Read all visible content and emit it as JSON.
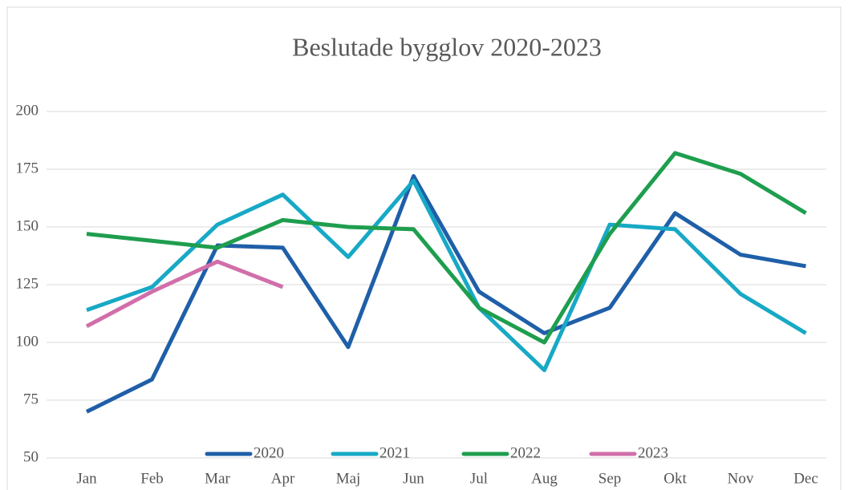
{
  "chart_data": {
    "type": "line",
    "title": "Beslutade bygglov 2020-2023",
    "categories": [
      "Jan",
      "Feb",
      "Mar",
      "Apr",
      "Maj",
      "Jun",
      "Jul",
      "Aug",
      "Sep",
      "Okt",
      "Nov",
      "Dec"
    ],
    "series": [
      {
        "name": "2020",
        "color": "#1f5fa8",
        "values": [
          70,
          84,
          142,
          141,
          98,
          172,
          122,
          104,
          115,
          156,
          138,
          133
        ]
      },
      {
        "name": "2021",
        "color": "#17a9c5",
        "values": [
          114,
          124,
          151,
          164,
          137,
          170,
          115,
          88,
          151,
          149,
          121,
          104
        ]
      },
      {
        "name": "2022",
        "color": "#1e9e4e",
        "values": [
          147,
          144,
          141,
          153,
          150,
          149,
          115,
          100,
          147,
          182,
          173,
          156
        ]
      },
      {
        "name": "2023",
        "color": "#d16faa",
        "values": [
          107,
          122,
          135,
          124,
          null,
          null,
          null,
          null,
          null,
          null,
          null,
          null
        ]
      }
    ],
    "ylim": [
      50,
      200
    ],
    "yticks": [
      50,
      75,
      100,
      125,
      150,
      175,
      200
    ],
    "grid": true,
    "legend": "bottom"
  }
}
